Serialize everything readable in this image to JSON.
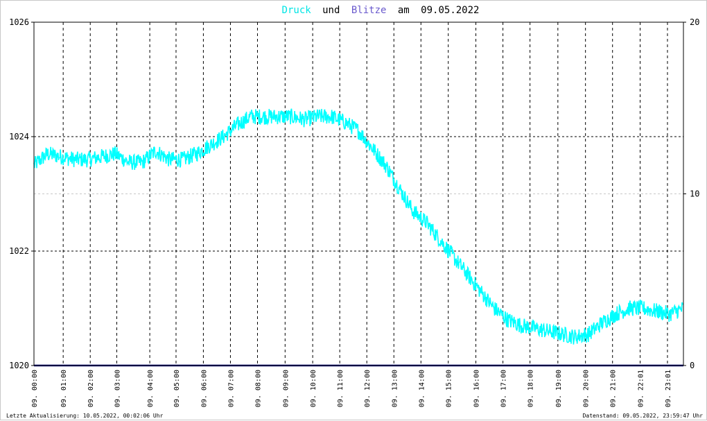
{
  "title": {
    "word_druck": "Druck",
    "word_und": "und",
    "word_blitze": "Blitze",
    "word_am": "am",
    "date": "09.05.2022",
    "color_druck": "#00ffff",
    "color_blitze": "#6a5acd",
    "color_text": "#000000"
  },
  "footer": {
    "left": "Letzte Aktualisierung: 10.05.2022, 00:02:06 Uhr",
    "right": "Datenstand: 09.05.2022, 23:59:47 Uhr"
  },
  "chart_data": {
    "type": "line",
    "title": "Druck und Blitze am 09.05.2022",
    "xlabel": "",
    "ylabel": "",
    "y_left": {
      "min": 1020,
      "max": 1026,
      "ticks": [
        "1020",
        "1022",
        "1024",
        "1026"
      ]
    },
    "y_right": {
      "min": 0,
      "max": 20,
      "ticks": [
        "0",
        "10",
        "20"
      ]
    },
    "x_ticks": [
      "09. 00:00",
      "09. 01:00",
      "09. 02:00",
      "09. 03:00",
      "09. 04:00",
      "09. 05:00",
      "09. 06:00",
      "09. 07:00",
      "09. 08:00",
      "09. 09:00",
      "09. 10:00",
      "09. 11:00",
      "09. 12:00",
      "09. 13:00",
      "09. 14:00",
      "09. 15:00",
      "09. 16:00",
      "09. 17:00",
      "09. 18:00",
      "09. 19:00",
      "09. 20:00",
      "09. 21:00",
      "09. 22:01",
      "09. 23:01"
    ],
    "x_tick_hours": [
      0,
      1.08,
      2.08,
      3.06,
      4.28,
      5.25,
      6.26,
      7.26,
      8.26,
      9.28,
      10.3,
      11.3,
      12.3,
      13.3,
      14.3,
      15.31,
      16.33,
      17.33,
      18.33,
      19.36,
      20.38,
      21.38,
      22.4,
      23.41
    ],
    "grid": true,
    "series": [
      {
        "axis": "left",
        "color": "#00ffff",
        "hours": [
          0,
          0.5,
          1,
          1.5,
          2,
          2.5,
          3,
          3.5,
          4,
          4.5,
          5,
          5.5,
          6,
          6.5,
          7,
          7.5,
          8,
          8.5,
          9,
          9.5,
          10,
          10.5,
          11,
          11.5,
          12,
          12.5,
          13,
          13.5,
          14,
          14.5,
          15,
          15.5,
          16,
          16.5,
          17,
          17.5,
          18,
          18.5,
          19,
          19.5,
          20,
          20.5,
          21,
          21.5,
          22,
          22.5,
          23,
          23.5,
          24
        ],
        "values": [
          1023.5,
          1023.7,
          1023.65,
          1023.6,
          1023.6,
          1023.65,
          1023.7,
          1023.55,
          1023.55,
          1023.75,
          1023.6,
          1023.6,
          1023.7,
          1023.85,
          1024.0,
          1024.2,
          1024.35,
          1024.35,
          1024.35,
          1024.35,
          1024.3,
          1024.35,
          1024.35,
          1024.25,
          1024.1,
          1023.8,
          1023.5,
          1023.1,
          1022.7,
          1022.5,
          1022.2,
          1021.9,
          1021.6,
          1021.3,
          1021.0,
          1020.8,
          1020.7,
          1020.65,
          1020.6,
          1020.55,
          1020.5,
          1020.55,
          1020.75,
          1020.9,
          1021.0,
          1021.0,
          1020.95,
          1020.9,
          1021.0
        ]
      },
      {
        "axis": "right",
        "color": "#00007f",
        "hours": [
          0,
          24
        ],
        "values": [
          0,
          0
        ]
      }
    ]
  }
}
